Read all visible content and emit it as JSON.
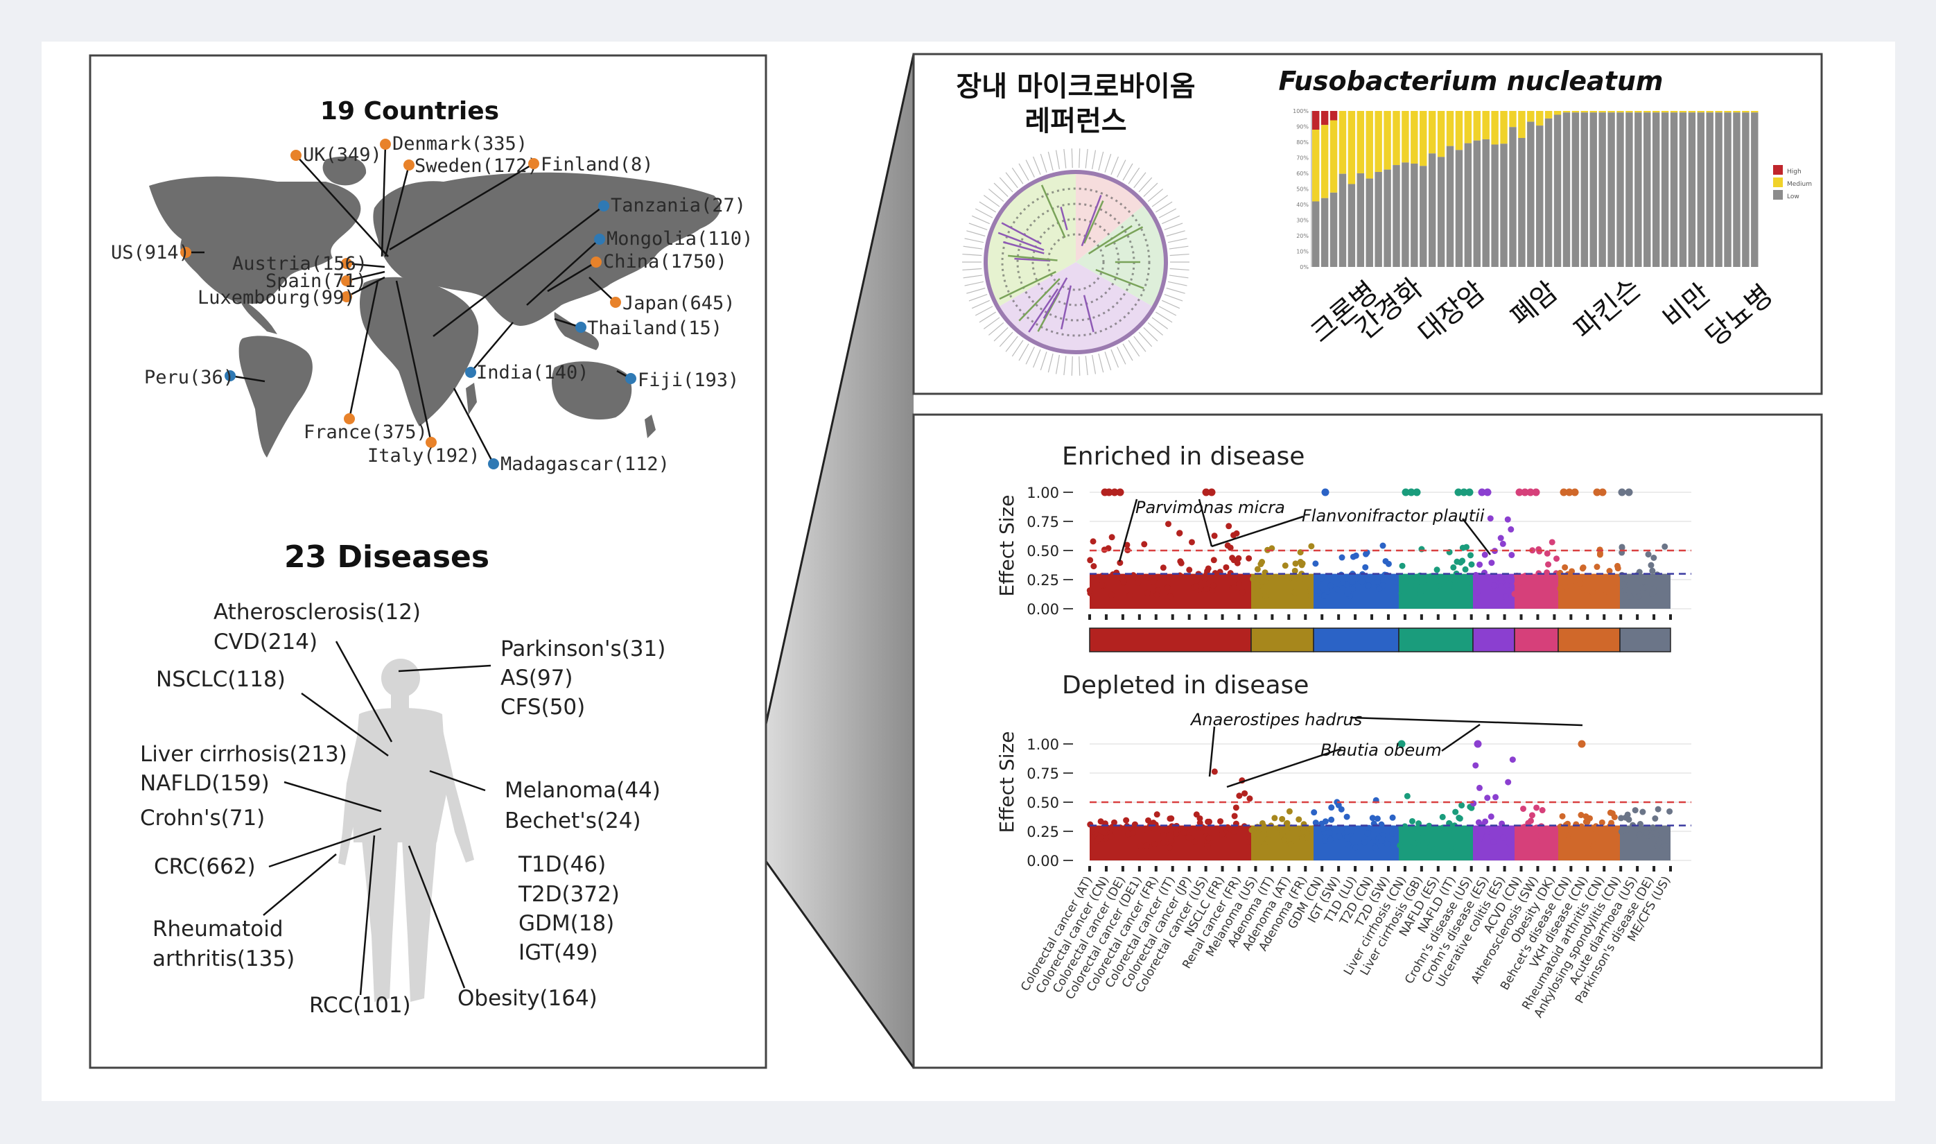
{
  "map": {
    "title": "19 Countries",
    "countries": [
      {
        "label": "UK(349)",
        "color": "orange"
      },
      {
        "label": "Denmark(335)",
        "color": "orange"
      },
      {
        "label": "Sweden(172)",
        "color": "orange"
      },
      {
        "label": "Finland(8)",
        "color": "orange"
      },
      {
        "label": "Tanzania(27)",
        "color": "blue"
      },
      {
        "label": "Mongolia(110)",
        "color": "blue"
      },
      {
        "label": "US(914)",
        "color": "orange"
      },
      {
        "label": "Austria(156)",
        "color": "orange"
      },
      {
        "label": "China(1750)",
        "color": "orange"
      },
      {
        "label": "Spain(71)",
        "color": "orange"
      },
      {
        "label": "Luxembourg(99)",
        "color": "orange"
      },
      {
        "label": "Japan(645)",
        "color": "orange"
      },
      {
        "label": "Thailand(15)",
        "color": "blue"
      },
      {
        "label": "Peru(36)",
        "color": "blue"
      },
      {
        "label": "India(140)",
        "color": "blue"
      },
      {
        "label": "Fiji(193)",
        "color": "blue"
      },
      {
        "label": "France(375)",
        "color": "orange"
      },
      {
        "label": "Italy(192)",
        "color": "orange"
      },
      {
        "label": "Madagascar(112)",
        "color": "blue"
      }
    ]
  },
  "diseases": {
    "title": "23 Diseases",
    "labels": [
      "Atherosclerosis(12)",
      "CVD(214)",
      "NSCLC(118)",
      "Parkinson's(31)",
      "AS(97)",
      "CFS(50)",
      "Liver cirrhosis(213)",
      "NAFLD(159)",
      "Crohn's(71)",
      "Melanoma(44)",
      "Bechet's(24)",
      "CRC(662)",
      "T1D(46)",
      "T2D(372)",
      "GDM(18)",
      "IGT(49)",
      "Rheumatoid",
      "arthritis(135)",
      "RCC(101)",
      "Obesity(164)"
    ]
  },
  "reference": {
    "title_line1": "장내 마이크로바이옴",
    "title_line2": "레퍼런스"
  },
  "fuso": {
    "title": "Fusobacterium nucleatum",
    "legend": [
      "High",
      "Medium",
      "Low"
    ],
    "y_ticks": [
      "100%",
      "90%",
      "80%",
      "70%",
      "60%",
      "50%",
      "40%",
      "30%",
      "20%",
      "10%",
      "0%"
    ],
    "x_labels": [
      "크론병",
      "간경화",
      "대장암",
      "폐암",
      "파킨슨",
      "비만",
      "당뇨병"
    ]
  },
  "manhattan": {
    "enriched_title": "Enriched in disease",
    "depleted_title": "Depleted in disease",
    "ylabel": "Effect Size",
    "y_ticks": [
      "0.00",
      "0.25",
      "0.50",
      "0.75",
      "1.00"
    ],
    "enriched_annotations": [
      "Parvimonas micra",
      "Flanvonifractor plautii"
    ],
    "depleted_annotations": [
      "Anaerostipes hadrus",
      "Blautia obeum"
    ],
    "studies": [
      "Colorectal cancer (AT)",
      "Colorectal cancer (CN)",
      "Colorectal cancer (DE)",
      "Colorectal cancer (DE1)",
      "Colorectal cancer (FR)",
      "Colorectal cancer (IT)",
      "Colorectal cancer (JP)",
      "Colorectal cancer (US)",
      "NSCLC (FR)",
      "Renal cancer (FR)",
      "Melanoma (US)",
      "Adenoma (IT)",
      "Adenoma (AT)",
      "Adenoma (FR)",
      "GDM (CN)",
      "IGT (SW)",
      "T1D (LU)",
      "T2D (CN)",
      "T2D (SW)",
      "Liver cirrhosis (CN)",
      "Liver cirrhosis (GB)",
      "NAFLD (ES)",
      "NAFLD (IT)",
      "Crohn's disease (US)",
      "Crohn's disease (ES)",
      "Ulcerative colitis (ES)",
      "ACVD (CN)",
      "Atherosclerosis (SW)",
      "Obesity (DK)",
      "Behcet's disease (CN)",
      "VKH disease (CN)",
      "Rheumatoid arthritis (CN)",
      "Ankylosing spondylitis (CN)",
      "Acute diarrhoea (US)",
      "Parkinson's disease (DE)",
      "ME/CFS (US)"
    ]
  }
}
